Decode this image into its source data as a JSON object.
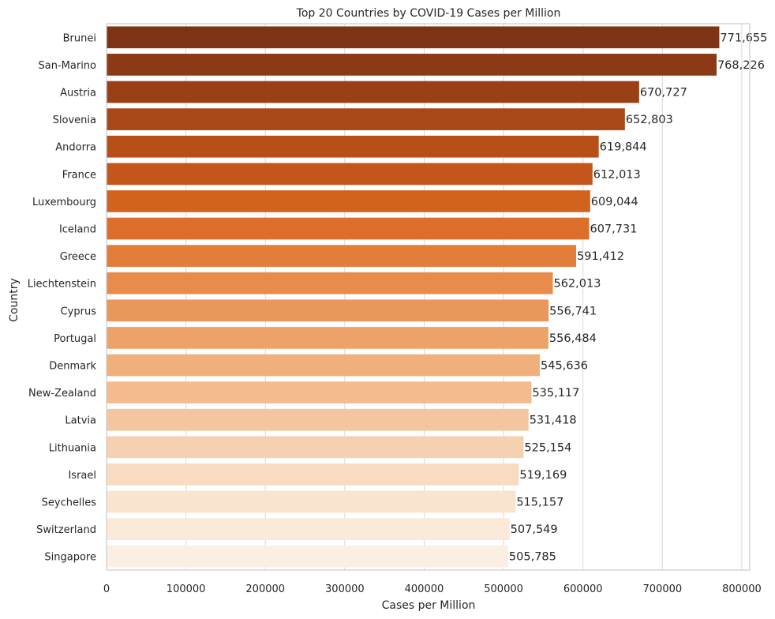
{
  "chart_data": {
    "type": "bar",
    "orientation": "horizontal",
    "title": "Top 20 Countries by COVID-19 Cases per Million",
    "xlabel": "Cases per Million",
    "ylabel": "Country",
    "xlim": [
      0,
      810000
    ],
    "xticks": [
      0,
      100000,
      200000,
      300000,
      400000,
      500000,
      600000,
      700000,
      800000
    ],
    "grid": true,
    "categories": [
      "Brunei",
      "San-Marino",
      "Austria",
      "Slovenia",
      "Andorra",
      "France",
      "Luxembourg",
      "Iceland",
      "Greece",
      "Liechtenstein",
      "Cyprus",
      "Portugal",
      "Denmark",
      "New-Zealand",
      "Latvia",
      "Lithuania",
      "Israel",
      "Seychelles",
      "Switzerland",
      "Singapore"
    ],
    "values": [
      771655,
      768226,
      670727,
      652803,
      619844,
      612013,
      609044,
      607731,
      591412,
      562013,
      556741,
      556484,
      545636,
      535117,
      531418,
      525154,
      519169,
      515157,
      507549,
      505785
    ],
    "value_labels": [
      "771,655",
      "768,226",
      "670,727",
      "652,803",
      "619,844",
      "612,013",
      "609,044",
      "607,731",
      "591,412",
      "562,013",
      "556,741",
      "556,484",
      "545,636",
      "535,117",
      "531,418",
      "525,154",
      "519,169",
      "515,157",
      "507,549",
      "505,785"
    ],
    "colors": [
      "#7f3315",
      "#8c3915",
      "#9a4016",
      "#a84717",
      "#b84f19",
      "#c4561c",
      "#d2631f",
      "#dc6e2c",
      "#e37d3a",
      "#e88b4b",
      "#ea975c",
      "#eda367",
      "#f0b07c",
      "#f2bc8f",
      "#f4c69f",
      "#f6d1b1",
      "#f8dbc1",
      "#fae3cf",
      "#fbe9da",
      "#fbefe4"
    ]
  }
}
